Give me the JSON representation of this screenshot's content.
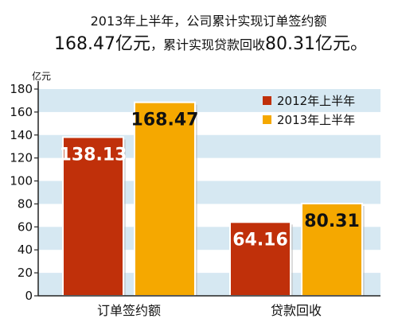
{
  "title_line1": "2013年上半年，公司累计实现订单签约额",
  "title_line2_big1": "168.47亿元",
  "title_line2_small": "，累计实现贷款回收",
  "title_line2_big2": "80.31亿元。",
  "colors": {
    "band": "#d6e8f2",
    "series_2012": "#c0300a",
    "series_2013": "#f5a800",
    "axis": "#222222"
  },
  "chart_data": {
    "type": "bar",
    "categories": [
      "订单签约额",
      "贷款回收"
    ],
    "series": [
      {
        "name": "2012年上半年",
        "values": [
          138.13,
          64.16
        ]
      },
      {
        "name": "2013年上半年",
        "values": [
          168.47,
          80.31
        ]
      }
    ],
    "data_labels": [
      [
        "138.13",
        "64.16"
      ],
      [
        "168.47",
        "80.31"
      ]
    ],
    "ylabel": "亿元",
    "ylim": [
      0,
      180
    ],
    "yticks": [
      0,
      20,
      40,
      60,
      80,
      100,
      120,
      140,
      160,
      180
    ],
    "legend_position": "top-right"
  }
}
